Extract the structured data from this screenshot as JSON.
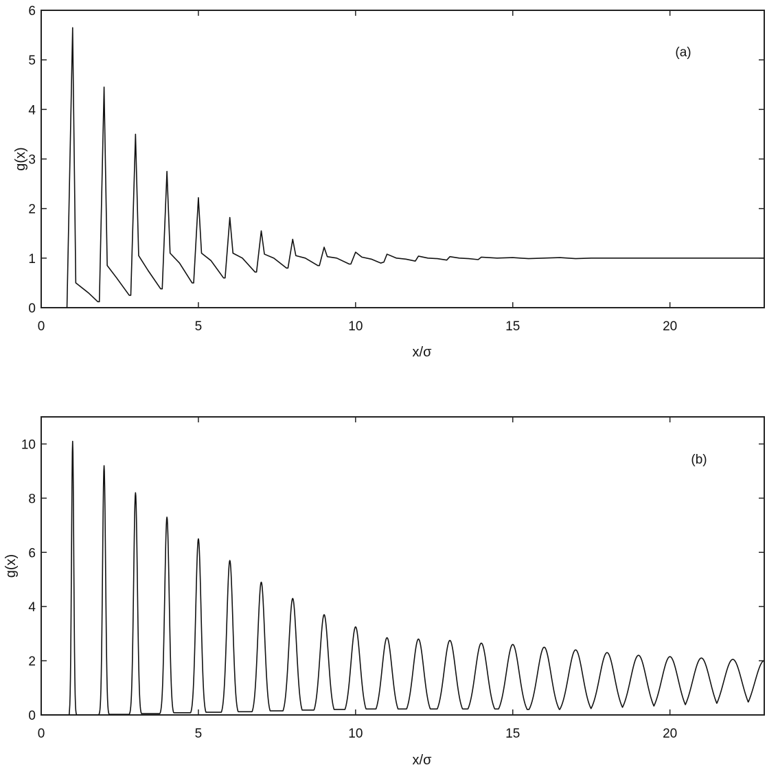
{
  "chart_data": [
    {
      "type": "line",
      "panel_label": "(a)",
      "xlabel": "x/σ",
      "ylabel": "g(x)",
      "xlim": [
        0,
        23
      ],
      "ylim": [
        0,
        6
      ],
      "xticks": [
        0,
        5,
        10,
        15,
        20
      ],
      "yticks": [
        0,
        1,
        2,
        3,
        4,
        5,
        6
      ],
      "grid": false,
      "line_color": "#111111",
      "series": [
        {
          "x": [
            0.8,
            0.82,
            1.0,
            1.1,
            1.5,
            1.8,
            1.85,
            2.0,
            2.1,
            2.4,
            2.8,
            2.85,
            3.0,
            3.1,
            3.4,
            3.8,
            3.85,
            4.0,
            4.1,
            4.4,
            4.8,
            4.85,
            5.0,
            5.1,
            5.4,
            5.8,
            5.85,
            6.0,
            6.1,
            6.4,
            6.8,
            6.85,
            7.0,
            7.1,
            7.4,
            7.8,
            7.85,
            8.0,
            8.1,
            8.4,
            8.8,
            8.85,
            9.0,
            9.1,
            9.4,
            9.8,
            9.85,
            10.0,
            10.2,
            10.5,
            10.8,
            10.9,
            11.0,
            11.3,
            11.6,
            11.9,
            12.0,
            12.3,
            12.6,
            12.9,
            13.0,
            13.3,
            13.6,
            13.9,
            14.0,
            14.5,
            15.0,
            15.5,
            16.0,
            16.5,
            17.0,
            17.5,
            18.0,
            18.5,
            19.0,
            19.5,
            20.0,
            20.5,
            21.0,
            21.5,
            22.0,
            22.5,
            23.0
          ],
          "y": [
            0.0,
            0.0,
            5.65,
            0.5,
            0.3,
            0.12,
            0.12,
            4.45,
            0.85,
            0.6,
            0.25,
            0.25,
            3.5,
            1.05,
            0.75,
            0.38,
            0.38,
            2.75,
            1.1,
            0.9,
            0.5,
            0.5,
            2.22,
            1.1,
            0.95,
            0.6,
            0.6,
            1.82,
            1.1,
            1.0,
            0.72,
            0.72,
            1.55,
            1.08,
            1.0,
            0.8,
            0.8,
            1.38,
            1.05,
            1.0,
            0.85,
            0.85,
            1.22,
            1.03,
            1.0,
            0.88,
            0.88,
            1.12,
            1.02,
            0.98,
            0.9,
            0.92,
            1.08,
            1.0,
            0.98,
            0.94,
            1.04,
            1.0,
            0.99,
            0.96,
            1.03,
            1.0,
            0.99,
            0.97,
            1.02,
            1.0,
            1.01,
            0.99,
            1.0,
            1.01,
            0.99,
            1.0,
            1.0,
            1.0,
            1.0,
            1.0,
            1.0,
            1.0,
            1.0,
            1.0,
            1.0,
            1.0,
            1.0
          ]
        }
      ]
    },
    {
      "type": "line",
      "panel_label": "(b)",
      "xlabel": "x/σ",
      "ylabel": "g(x)",
      "xlim": [
        0,
        23
      ],
      "ylim": [
        0,
        11
      ],
      "xticks": [
        0,
        5,
        10,
        15,
        20
      ],
      "yticks": [
        0,
        2,
        4,
        6,
        8,
        10
      ],
      "grid": false,
      "line_color": "#111111",
      "peaks": [
        {
          "x": 1,
          "height": 10.1
        },
        {
          "x": 2,
          "height": 9.2
        },
        {
          "x": 3,
          "height": 8.2
        },
        {
          "x": 4,
          "height": 7.3
        },
        {
          "x": 5,
          "height": 6.5
        },
        {
          "x": 6,
          "height": 5.7
        },
        {
          "x": 7,
          "height": 4.9
        },
        {
          "x": 8,
          "height": 4.3
        },
        {
          "x": 9,
          "height": 3.7
        },
        {
          "x": 10,
          "height": 3.25
        },
        {
          "x": 11,
          "height": 2.85
        },
        {
          "x": 12,
          "height": 2.8
        },
        {
          "x": 13,
          "height": 2.75
        },
        {
          "x": 14,
          "height": 2.65
        },
        {
          "x": 15,
          "height": 2.6
        },
        {
          "x": 16,
          "height": 2.5
        },
        {
          "x": 17,
          "height": 2.4
        },
        {
          "x": 18,
          "height": 2.3
        },
        {
          "x": 19,
          "height": 2.2
        },
        {
          "x": 20,
          "height": 2.15
        },
        {
          "x": 21,
          "height": 2.1
        },
        {
          "x": 22,
          "height": 2.05
        },
        {
          "x": 23,
          "height": 2.0
        }
      ],
      "valleys": [
        {
          "x": 0.0,
          "value": 0.0
        },
        {
          "x": 0.9,
          "value": 0.0
        },
        {
          "x": 1.5,
          "value": 0.0
        },
        {
          "x": 2.5,
          "value": 0.02
        },
        {
          "x": 3.5,
          "value": 0.05
        },
        {
          "x": 4.5,
          "value": 0.08
        },
        {
          "x": 5.5,
          "value": 0.1
        },
        {
          "x": 6.5,
          "value": 0.12
        },
        {
          "x": 7.5,
          "value": 0.15
        },
        {
          "x": 8.5,
          "value": 0.18
        },
        {
          "x": 9.5,
          "value": 0.2
        },
        {
          "x": 10.5,
          "value": 0.22
        },
        {
          "x": 11.5,
          "value": 0.22
        },
        {
          "x": 12.5,
          "value": 0.22
        },
        {
          "x": 13.5,
          "value": 0.22
        },
        {
          "x": 14.5,
          "value": 0.22
        },
        {
          "x": 15.5,
          "value": 0.2
        },
        {
          "x": 16.5,
          "value": 0.2
        },
        {
          "x": 17.5,
          "value": 0.2
        },
        {
          "x": 18.5,
          "value": 0.2
        },
        {
          "x": 19.5,
          "value": 0.2
        },
        {
          "x": 20.5,
          "value": 0.2
        },
        {
          "x": 21.5,
          "value": 0.2
        },
        {
          "x": 22.5,
          "value": 0.2
        }
      ]
    }
  ]
}
